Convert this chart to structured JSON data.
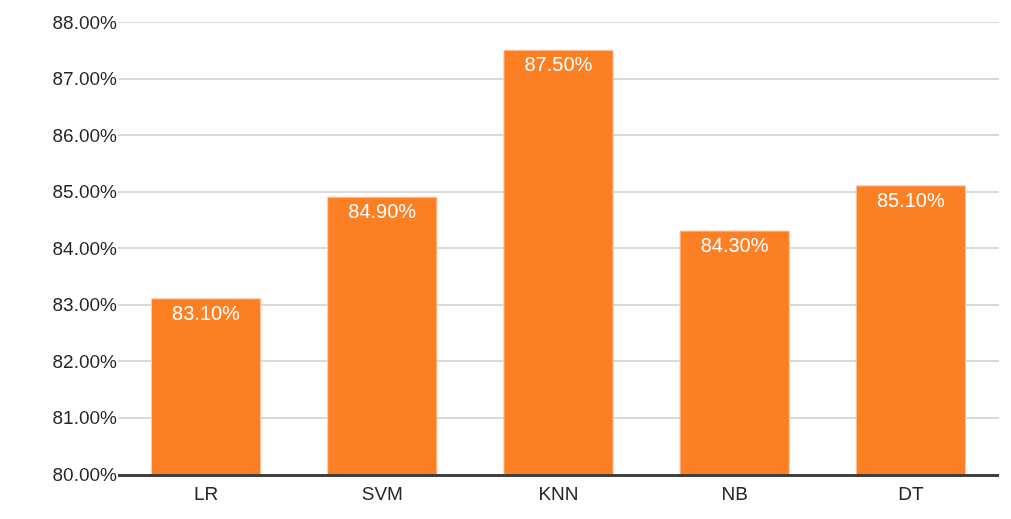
{
  "chart_data": {
    "type": "bar",
    "categories": [
      "LR",
      "SVM",
      "KNN",
      "NB",
      "DT"
    ],
    "values": [
      83.1,
      84.9,
      87.5,
      84.3,
      85.1
    ],
    "value_labels": [
      "83.10%",
      "84.90%",
      "87.50%",
      "84.30%",
      "85.10%"
    ],
    "color": "#fd7f24",
    "ylim": [
      80,
      88
    ],
    "yticks": [
      {
        "value": 80,
        "label": "80.00%"
      },
      {
        "value": 81,
        "label": "81.00%"
      },
      {
        "value": 82,
        "label": "82.00%"
      },
      {
        "value": 83,
        "label": "83.00%"
      },
      {
        "value": 84,
        "label": "84.00%"
      },
      {
        "value": 85,
        "label": "85.00%"
      },
      {
        "value": 86,
        "label": "86.00%"
      },
      {
        "value": 87,
        "label": "87.00%"
      },
      {
        "value": 88,
        "label": "88.00%"
      }
    ],
    "grid": "y"
  }
}
